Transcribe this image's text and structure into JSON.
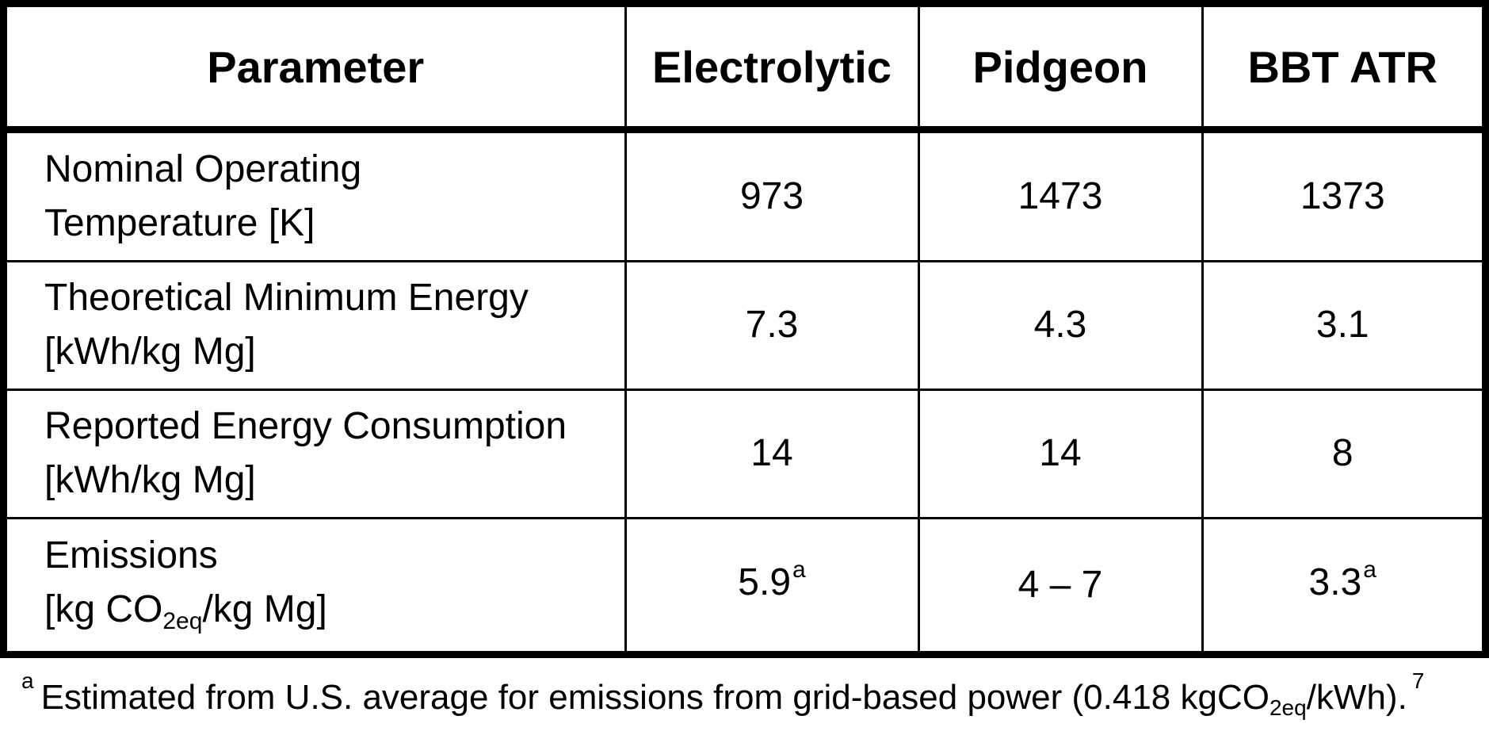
{
  "table": {
    "headers": [
      "Parameter",
      "Electrolytic",
      "Pidgeon",
      "BBT ATR"
    ],
    "rows": [
      {
        "param_line1": "Nominal Operating",
        "param_line2": "Temperature [K]",
        "values": [
          "973",
          "1473",
          "1373"
        ]
      },
      {
        "param_line1": "Theoretical Minimum Energy",
        "param_line2": "[kWh/kg Mg]",
        "values": [
          "7.3",
          "4.3",
          "3.1"
        ]
      },
      {
        "param_line1": "Reported Energy Consumption",
        "param_line2": "[kWh/kg Mg]",
        "values": [
          "14",
          "14",
          "8"
        ]
      },
      {
        "param_line1": "Emissions",
        "param_line2_pre": "[kg CO",
        "param_line2_sub": "2eq",
        "param_line2_post": "/kg Mg]",
        "values": [
          "5.9",
          "4 – 7",
          "3.3"
        ],
        "value_marks": [
          "a",
          "",
          "a"
        ]
      }
    ]
  },
  "footnote": {
    "mark": "a",
    "text_pre": "Estimated from U.S. average for emissions from grid-based power (0.418 kgCO",
    "text_sub": "2eq",
    "text_post": "/kWh).",
    "ref": "7"
  }
}
